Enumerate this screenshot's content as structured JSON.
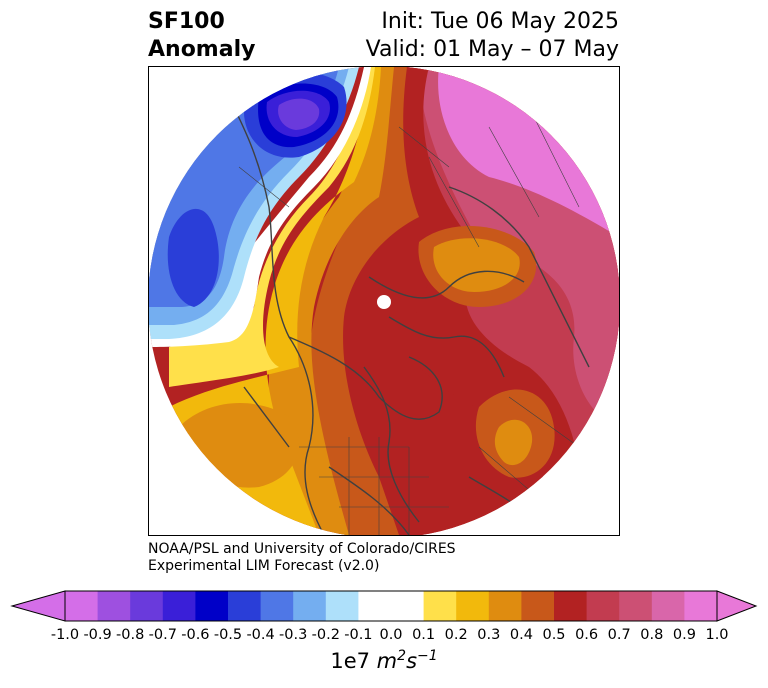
{
  "header": {
    "variable": "SF100",
    "subtitle": "Anomaly",
    "init": "Init: Tue 06 May 2025",
    "valid": "Valid: 01 May – 07 May"
  },
  "credit": {
    "line1": "NOAA/PSL and University of Colorado/CIRES",
    "line2": "Experimental LIM Forecast (v2.0)"
  },
  "colorbar": {
    "ticks": [
      "-1.0",
      "-0.9",
      "-0.8",
      "-0.7",
      "-0.6",
      "-0.5",
      "-0.4",
      "-0.3",
      "-0.2",
      "-0.1",
      "0.0",
      "0.1",
      "0.2",
      "0.3",
      "0.4",
      "0.5",
      "0.6",
      "0.7",
      "0.8",
      "0.9",
      "1.0"
    ],
    "colors": [
      "#d46ee8",
      "#9e50e0",
      "#6a3adc",
      "#3a1fd8",
      "#0000c8",
      "#2a3ed8",
      "#4f77e6",
      "#74aef0",
      "#aee0fa",
      "#ffffff",
      "#ffffff",
      "#ffe04a",
      "#f2b90c",
      "#df8c10",
      "#c8581a",
      "#b22222",
      "#c23c50",
      "#cc5074",
      "#d966aa",
      "#e878d8"
    ],
    "units_base": "1e7",
    "units_m": "m",
    "units_m_exp": "2",
    "units_s": "s",
    "units_s_exp": "−1"
  },
  "map": {
    "projection": "north-polar-stereographic",
    "palette": {
      "magenta": "#e878d8",
      "pink": "#cc5074",
      "rose": "#c23c50",
      "red": "#b22222",
      "rust": "#c8581a",
      "orange": "#df8c10",
      "gold": "#f2b90c",
      "yellow": "#ffe04a",
      "light_blue": "#aee0fa",
      "sky_blue": "#74aef0",
      "blue": "#4f77e6",
      "mid_blue": "#2a3ed8",
      "navy": "#0000c8",
      "indigo": "#3a1fd8",
      "violet": "#6a3adc",
      "coast": "#404040"
    }
  }
}
